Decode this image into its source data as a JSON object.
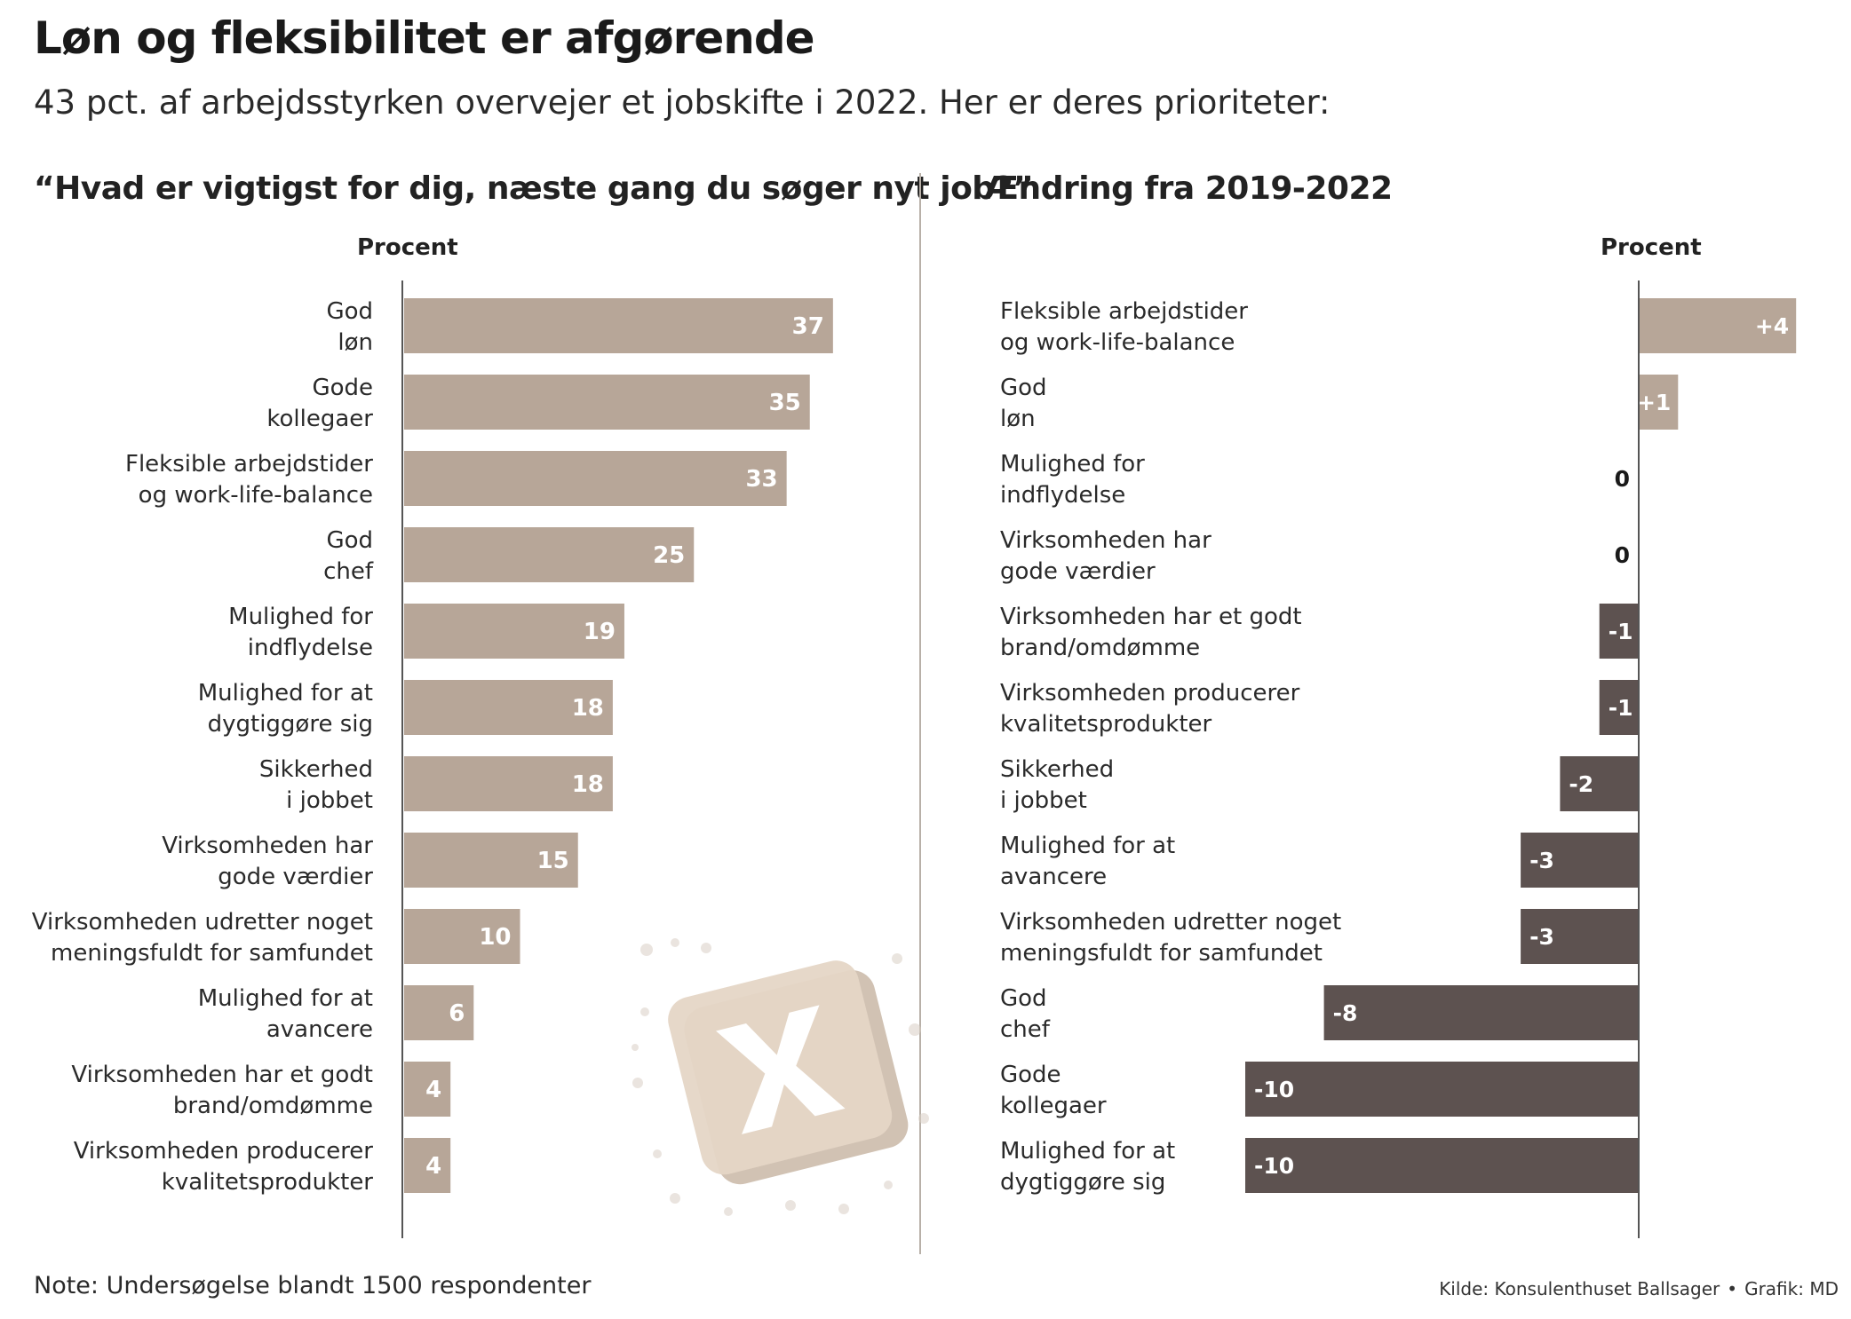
{
  "title": "Løn og fleksibilitet er afgørende",
  "subtitle": "43 pct. af arbejdsstyrken overvejer et jobskifte i 2022. Her er deres prioriteter:",
  "colors": {
    "left_bar": "#b7a698",
    "positive_bar": "#b7a698",
    "negative_bar": "#5d5250",
    "axis": "#555555",
    "divider": "#b8b0a8"
  },
  "watermark_icon": "x-logo-icon",
  "chart_data": [
    {
      "type": "bar",
      "orientation": "horizontal",
      "title": "“Hvad er vigtigst for dig, næste gang du søger nyt job?”",
      "unit_label": "Procent",
      "categories": [
        "God\nløn",
        "Gode\nkollegaer",
        "Fleksible arbejdstider\nog work-life-balance",
        "God\nchef",
        "Mulighed for\nindflydelse",
        "Mulighed for at\ndygtiggøre sig",
        "Sikkerhed\ni jobbet",
        "Virksomheden har\ngode værdier",
        "Virksomheden udretter noget\nmeningsfuldt for samfundet",
        "Mulighed for at\navancere",
        "Virksomheden har et godt\nbrand/omdømme",
        "Virksomheden producerer\nkvalitetsprodukter"
      ],
      "values": [
        37,
        35,
        33,
        25,
        19,
        18,
        18,
        15,
        10,
        6,
        4,
        4
      ],
      "value_labels": [
        "37",
        "35",
        "33",
        "25",
        "19",
        "18",
        "18",
        "15",
        "10",
        "6",
        "4",
        "4"
      ],
      "xlim": [
        0,
        40
      ]
    },
    {
      "type": "bar",
      "orientation": "horizontal",
      "title": "Ændring fra 2019-2022",
      "unit_label": "Procent",
      "categories": [
        "Fleksible arbejdstider\nog work-life-balance",
        "God\nløn",
        "Mulighed for\nindflydelse",
        "Virksomheden har\ngode værdier",
        "Virksomheden har et godt\nbrand/omdømme",
        "Virksomheden producerer\nkvalitetsprodukter",
        "Sikkerhed\ni jobbet",
        "Mulighed for at\navancere",
        "Virksomheden udretter noget\nmeningsfuldt for samfundet",
        "God\nchef",
        "Gode\nkollegaer",
        "Mulighed for at\ndygtiggøre sig"
      ],
      "values": [
        4,
        1,
        0,
        0,
        -1,
        -1,
        -2,
        -3,
        -3,
        -8,
        -10,
        -10
      ],
      "value_labels": [
        "+4",
        "+1",
        "0",
        "0",
        "-1",
        "-1",
        "-2",
        "-3",
        "-3",
        "-8",
        "-10",
        "-10"
      ],
      "xlim": [
        -10,
        4
      ]
    }
  ],
  "footer": {
    "note": "Note: Undersøgelse blandt 1500 respondenter",
    "source": "Kilde: Konsulenthuset Ballsager",
    "separator": "•",
    "graphic": "Grafik: MD"
  }
}
